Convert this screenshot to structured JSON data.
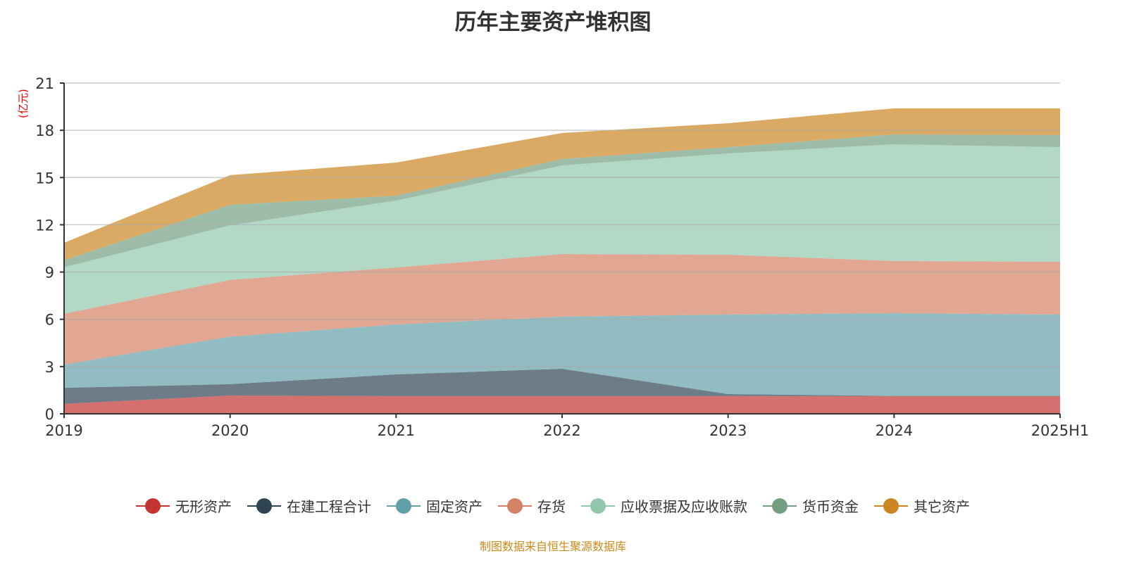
{
  "chart_data": {
    "type": "area",
    "stacked": true,
    "title": "历年主要资产堆积图",
    "ylabel": "(亿元)",
    "xlabel": "",
    "categories": [
      "2019",
      "2020",
      "2021",
      "2022",
      "2023",
      "2024",
      "2025H1"
    ],
    "ylim": [
      0,
      21
    ],
    "yticks": [
      0,
      3,
      6,
      9,
      12,
      15,
      18,
      21
    ],
    "grid": true,
    "legend_position": "bottom",
    "series": [
      {
        "name": "无形资产",
        "color": "#c23531",
        "values": [
          0.63,
          1.16,
          1.12,
          1.12,
          1.12,
          1.12,
          1.12
        ]
      },
      {
        "name": "在建工程合计",
        "color": "#2f4554",
        "values": [
          1.02,
          0.72,
          1.38,
          1.74,
          0.13,
          0.02,
          0.02
        ]
      },
      {
        "name": "固定资产",
        "color": "#61a0a8",
        "values": [
          1.48,
          3.02,
          3.17,
          3.31,
          5.05,
          5.25,
          5.16
        ]
      },
      {
        "name": "存货",
        "color": "#d48265",
        "values": [
          3.22,
          3.6,
          3.62,
          3.97,
          3.8,
          3.31,
          3.35
        ]
      },
      {
        "name": "应收票据及应收账款",
        "color": "#91c7ae",
        "values": [
          2.95,
          3.47,
          4.25,
          5.63,
          6.43,
          7.41,
          7.28
        ]
      },
      {
        "name": "货币资金",
        "color": "#749f83",
        "values": [
          0.45,
          1.3,
          0.31,
          0.41,
          0.4,
          0.63,
          0.77
        ]
      },
      {
        "name": "其它资产",
        "color": "#ca8622",
        "values": [
          1.11,
          1.88,
          2.1,
          1.65,
          1.52,
          1.65,
          1.69
        ]
      }
    ]
  },
  "footer": "制图数据来自恒生聚源数据库"
}
